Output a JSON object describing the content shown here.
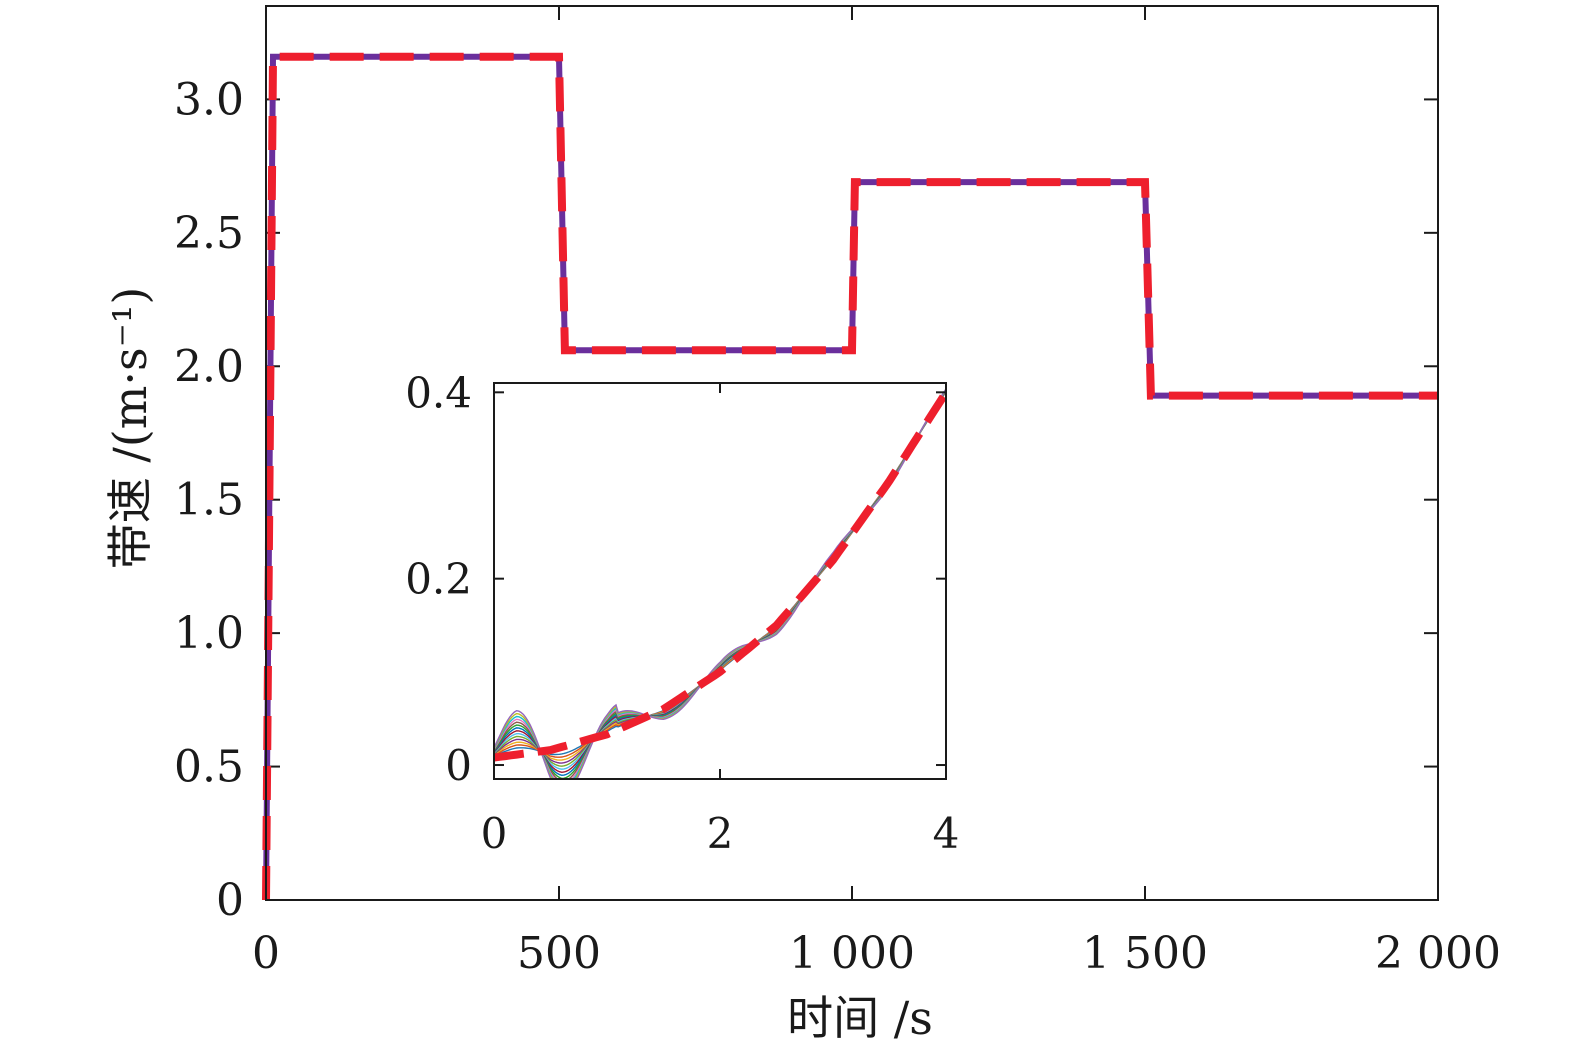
{
  "chart_data": [
    {
      "type": "line",
      "xlabel": "时间 /s",
      "ylabel": "带速 /(m·s⁻¹)",
      "xlim": [
        0,
        2000
      ],
      "ylim": [
        0,
        3.35
      ],
      "xticks": [
        0,
        500,
        1000,
        1500,
        2000
      ],
      "xtick_labels": [
        "0",
        "500",
        "1 000",
        "1 500",
        "2 000"
      ],
      "yticks": [
        0,
        0.5,
        1.0,
        1.5,
        2.0,
        2.5,
        3.0
      ],
      "ytick_labels": [
        "0",
        "0.5",
        "1.0",
        "1.5",
        "2.0",
        "2.5",
        "3.0"
      ],
      "grid": false,
      "series": [
        {
          "color": "#6a2f9c",
          "style": "solid",
          "x": [
            0,
            12,
            500,
            510,
            1000,
            1005,
            1500,
            1510,
            2000
          ],
          "y": [
            0,
            3.16,
            3.16,
            2.06,
            2.06,
            2.69,
            2.69,
            1.89,
            1.89
          ]
        },
        {
          "color": "#ee1f2d",
          "style": "dashed",
          "x": [
            0,
            12,
            500,
            510,
            1000,
            1005,
            1500,
            1510,
            2000
          ],
          "y": [
            0,
            3.16,
            3.16,
            2.06,
            2.06,
            2.69,
            2.69,
            1.89,
            1.89
          ]
        }
      ]
    },
    {
      "type": "line",
      "inset": true,
      "xlim": [
        0,
        4
      ],
      "ylim": [
        -0.015,
        0.41
      ],
      "xticks": [
        0,
        2,
        4
      ],
      "xtick_labels": [
        "0",
        "2",
        "4"
      ],
      "yticks": [
        0,
        0.2,
        0.4
      ],
      "ytick_labels": [
        "0",
        "0.2",
        "0.4"
      ],
      "grid": false,
      "reference": {
        "color": "#ee1f2d",
        "style": "dashed",
        "x": [
          0,
          0.5,
          1.0,
          1.5,
          2.0,
          2.5,
          3.0,
          3.5,
          4.0
        ],
        "y": [
          0.008,
          0.016,
          0.033,
          0.06,
          0.1,
          0.15,
          0.22,
          0.305,
          0.4
        ]
      },
      "oscillation_envelope": {
        "x": [
          0.0,
          0.1,
          0.2,
          0.3,
          0.4,
          0.5,
          0.6,
          0.7,
          0.8,
          0.9,
          1.0,
          1.2,
          1.4,
          1.6,
          1.8,
          2.0,
          2.2,
          2.4,
          2.6,
          2.8,
          3.0,
          3.2,
          3.4,
          3.6,
          3.8,
          4.0
        ],
        "amplitude": [
          0.02,
          0.028,
          0.034,
          0.036,
          0.038,
          0.04,
          0.038,
          0.034,
          0.03,
          0.026,
          0.022,
          0.018,
          0.016,
          0.015,
          0.014,
          0.013,
          0.013,
          0.012,
          0.011,
          0.01,
          0.009,
          0.008,
          0.007,
          0.006,
          0.005,
          0.004
        ]
      },
      "series_colors": [
        "#1f77b4",
        "#d95319",
        "#edb120",
        "#7e2f8e",
        "#77ac30",
        "#4dbeee",
        "#a2142f",
        "#0072bd",
        "#2ca02c",
        "#8c564b",
        "#e377c2",
        "#17becf",
        "#bcbd22",
        "#9467bd"
      ]
    }
  ]
}
